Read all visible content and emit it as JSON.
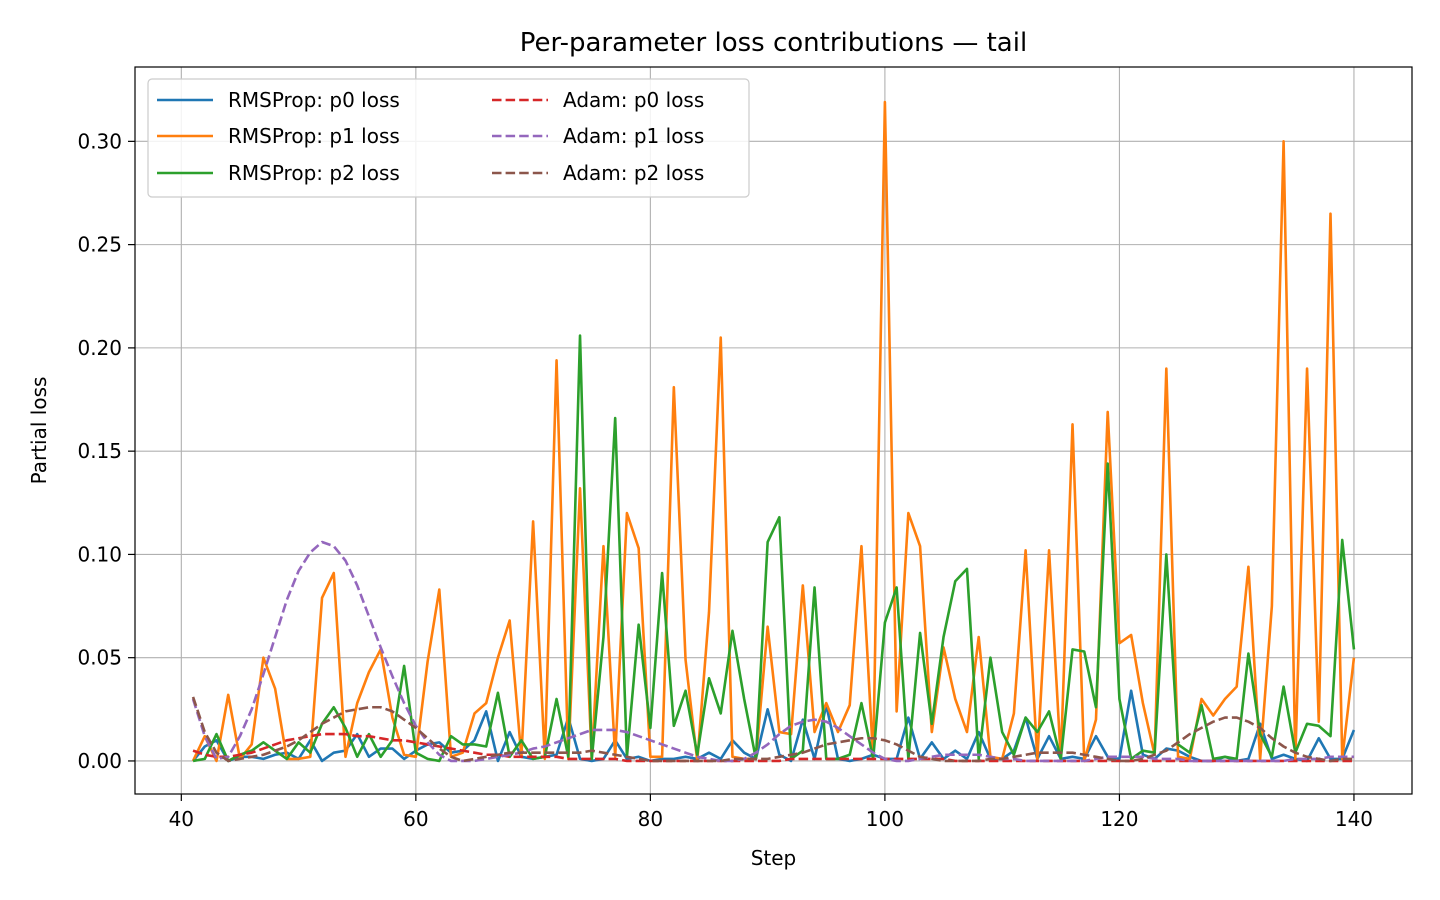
{
  "chart_data": {
    "type": "line",
    "title": "Per-parameter loss contributions — tail",
    "xlabel": "Step",
    "ylabel": "Partial loss",
    "xlim": [
      36.05,
      144.95
    ],
    "ylim": [
      -0.016,
      0.336
    ],
    "xticks": [
      40,
      60,
      80,
      100,
      120,
      140
    ],
    "xtick_labels": [
      "40",
      "60",
      "80",
      "100",
      "120",
      "140"
    ],
    "yticks": [
      0.0,
      0.05,
      0.1,
      0.15,
      0.2,
      0.25,
      0.3
    ],
    "ytick_labels": [
      "0.00",
      "0.05",
      "0.10",
      "0.15",
      "0.20",
      "0.25",
      "0.30"
    ],
    "grid": true,
    "legend_position": "top-left",
    "x_start": 41,
    "x_end": 140,
    "series": [
      {
        "name": "RMSProp: p0 loss",
        "color": "#1f77b4",
        "style": "solid",
        "values": [
          0.0,
          0.007,
          0.01,
          0.0,
          0.002,
          0.002,
          0.001,
          0.003,
          0.004,
          0.001,
          0.01,
          0.0,
          0.004,
          0.005,
          0.013,
          0.002,
          0.006,
          0.006,
          0.001,
          0.005,
          0.008,
          0.009,
          0.004,
          0.005,
          0.01,
          0.024,
          0.0,
          0.014,
          0.002,
          0.001,
          0.002,
          0.003,
          0.021,
          0.001,
          0.0,
          0.001,
          0.01,
          0.001,
          0.002,
          0.0,
          0.001,
          0.001,
          0.002,
          0.001,
          0.004,
          0.001,
          0.01,
          0.004,
          0.001,
          0.025,
          0.003,
          0.0,
          0.02,
          0.001,
          0.027,
          0.001,
          0.0,
          0.001,
          0.003,
          0.001,
          0.001,
          0.021,
          0.001,
          0.009,
          0.001,
          0.005,
          0.001,
          0.014,
          0.001,
          0.001,
          0.005,
          0.021,
          0.001,
          0.012,
          0.001,
          0.002,
          0.001,
          0.012,
          0.002,
          0.001,
          0.034,
          0.003,
          0.001,
          0.006,
          0.005,
          0.002,
          0.0,
          0.0,
          0.002,
          0.0,
          0.001,
          0.018,
          0.001,
          0.003,
          0.001,
          0.0,
          0.011,
          0.001,
          0.001,
          0.015
        ]
      },
      {
        "name": "RMSProp: p1 loss",
        "color": "#ff7f0e",
        "style": "solid",
        "values": [
          0.0,
          0.012,
          0.0,
          0.032,
          0.001,
          0.008,
          0.05,
          0.035,
          0.001,
          0.001,
          0.002,
          0.079,
          0.091,
          0.002,
          0.028,
          0.043,
          0.054,
          0.021,
          0.003,
          0.002,
          0.048,
          0.083,
          0.002,
          0.004,
          0.023,
          0.028,
          0.05,
          0.068,
          0.002,
          0.116,
          0.001,
          0.194,
          0.001,
          0.132,
          0.001,
          0.104,
          0.002,
          0.12,
          0.103,
          0.002,
          0.002,
          0.181,
          0.049,
          0.0,
          0.072,
          0.205,
          0.002,
          0.001,
          0.001,
          0.065,
          0.014,
          0.013,
          0.085,
          0.014,
          0.028,
          0.014,
          0.027,
          0.104,
          0.001,
          0.319,
          0.024,
          0.12,
          0.104,
          0.014,
          0.055,
          0.03,
          0.014,
          0.06,
          0.002,
          0.001,
          0.023,
          0.102,
          0.001,
          0.102,
          0.001,
          0.163,
          0.0,
          0.02,
          0.169,
          0.057,
          0.061,
          0.028,
          0.003,
          0.19,
          0.002,
          0.001,
          0.03,
          0.022,
          0.03,
          0.036,
          0.094,
          0.001,
          0.075,
          0.3,
          0.001,
          0.19,
          0.019,
          0.265,
          0.001,
          0.05
        ]
      },
      {
        "name": "RMSProp: p2 loss",
        "color": "#2ca02c",
        "style": "solid",
        "values": [
          0.0,
          0.001,
          0.013,
          0.0,
          0.003,
          0.005,
          0.009,
          0.005,
          0.001,
          0.009,
          0.004,
          0.018,
          0.026,
          0.016,
          0.002,
          0.013,
          0.002,
          0.01,
          0.046,
          0.004,
          0.001,
          0.0,
          0.012,
          0.008,
          0.008,
          0.007,
          0.033,
          0.002,
          0.01,
          0.001,
          0.002,
          0.03,
          0.002,
          0.206,
          0.001,
          0.06,
          0.166,
          0.002,
          0.066,
          0.016,
          0.091,
          0.017,
          0.034,
          0.003,
          0.04,
          0.023,
          0.063,
          0.03,
          0.001,
          0.106,
          0.118,
          0.001,
          0.005,
          0.084,
          0.001,
          0.001,
          0.003,
          0.028,
          0.001,
          0.067,
          0.084,
          0.001,
          0.062,
          0.018,
          0.06,
          0.087,
          0.093,
          0.001,
          0.05,
          0.014,
          0.003,
          0.021,
          0.014,
          0.024,
          0.001,
          0.054,
          0.053,
          0.026,
          0.144,
          0.03,
          0.001,
          0.005,
          0.004,
          0.1,
          0.008,
          0.004,
          0.027,
          0.001,
          0.002,
          0.001,
          0.052,
          0.013,
          0.002,
          0.036,
          0.004,
          0.018,
          0.017,
          0.012,
          0.107,
          0.054
        ]
      },
      {
        "name": "Adam: p0 loss",
        "color": "#d62728",
        "style": "dashed",
        "values": [
          0.005,
          0.003,
          0.002,
          0.002,
          0.003,
          0.004,
          0.006,
          0.008,
          0.01,
          0.011,
          0.012,
          0.013,
          0.013,
          0.013,
          0.012,
          0.012,
          0.011,
          0.01,
          0.01,
          0.009,
          0.008,
          0.007,
          0.006,
          0.005,
          0.004,
          0.003,
          0.003,
          0.002,
          0.002,
          0.002,
          0.002,
          0.002,
          0.001,
          0.001,
          0.001,
          0.001,
          0.001,
          0.0,
          0.0,
          0.0,
          0.0,
          0.0,
          0.0,
          0.0,
          0.0,
          0.0,
          0.0,
          0.0,
          0.0,
          0.0,
          0.0,
          0.001,
          0.001,
          0.001,
          0.001,
          0.001,
          0.001,
          0.001,
          0.001,
          0.001,
          0.001,
          0.001,
          0.001,
          0.001,
          0.001,
          0.0,
          0.0,
          0.0,
          0.0,
          0.0,
          0.0,
          0.0,
          0.0,
          0.0,
          0.0,
          0.0,
          0.0,
          0.0,
          0.0,
          0.0,
          0.0,
          0.0,
          0.0,
          0.0,
          0.0,
          0.0,
          0.0,
          0.0,
          0.0,
          0.0,
          0.0,
          0.0,
          0.0,
          0.0,
          0.0,
          0.0,
          0.0,
          0.0,
          0.0,
          0.0
        ]
      },
      {
        "name": "Adam: p1 loss",
        "color": "#9467bd",
        "style": "dashed",
        "values": [
          0.03,
          0.012,
          0.001,
          0.002,
          0.012,
          0.025,
          0.042,
          0.06,
          0.078,
          0.092,
          0.101,
          0.106,
          0.104,
          0.097,
          0.085,
          0.07,
          0.055,
          0.041,
          0.028,
          0.017,
          0.009,
          0.003,
          0.0,
          0.0,
          0.0,
          0.001,
          0.002,
          0.003,
          0.004,
          0.006,
          0.007,
          0.009,
          0.011,
          0.013,
          0.015,
          0.015,
          0.015,
          0.014,
          0.012,
          0.01,
          0.008,
          0.006,
          0.004,
          0.002,
          0.001,
          0.0,
          0.0,
          0.001,
          0.004,
          0.008,
          0.013,
          0.017,
          0.019,
          0.02,
          0.019,
          0.016,
          0.012,
          0.008,
          0.004,
          0.001,
          0.0,
          0.0,
          0.001,
          0.002,
          0.003,
          0.003,
          0.003,
          0.003,
          0.002,
          0.001,
          0.001,
          0.0,
          0.0,
          0.0,
          0.0,
          0.0,
          0.0,
          0.001,
          0.002,
          0.002,
          0.002,
          0.002,
          0.001,
          0.001,
          0.001,
          0.0,
          0.0,
          0.0,
          0.0,
          0.0,
          0.0,
          0.0,
          0.0,
          0.0,
          0.001,
          0.001,
          0.001,
          0.002,
          0.002,
          0.002
        ]
      },
      {
        "name": "Adam: p2 loss",
        "color": "#8c564b",
        "style": "dashed",
        "values": [
          0.031,
          0.014,
          0.004,
          0.0,
          0.001,
          0.002,
          0.003,
          0.005,
          0.007,
          0.01,
          0.014,
          0.018,
          0.021,
          0.024,
          0.025,
          0.026,
          0.026,
          0.024,
          0.02,
          0.016,
          0.011,
          0.006,
          0.002,
          0.0,
          0.001,
          0.002,
          0.003,
          0.004,
          0.004,
          0.004,
          0.004,
          0.004,
          0.004,
          0.004,
          0.005,
          0.004,
          0.003,
          0.002,
          0.001,
          0.0,
          0.0,
          0.0,
          0.0,
          0.0,
          0.0,
          0.0,
          0.001,
          0.001,
          0.001,
          0.001,
          0.002,
          0.003,
          0.004,
          0.006,
          0.008,
          0.009,
          0.01,
          0.011,
          0.011,
          0.01,
          0.008,
          0.005,
          0.002,
          0.001,
          0.0,
          0.0,
          0.0,
          0.0,
          0.001,
          0.001,
          0.002,
          0.003,
          0.004,
          0.004,
          0.004,
          0.004,
          0.003,
          0.002,
          0.001,
          0.0,
          0.0,
          0.001,
          0.003,
          0.005,
          0.009,
          0.013,
          0.016,
          0.019,
          0.021,
          0.021,
          0.019,
          0.016,
          0.011,
          0.007,
          0.004,
          0.002,
          0.001,
          0.0,
          0.001,
          0.001
        ]
      }
    ],
    "legend": {
      "columns": [
        [
          "RMSProp: p0 loss",
          "RMSProp: p1 loss",
          "RMSProp: p2 loss"
        ],
        [
          "Adam: p0 loss",
          "Adam: p1 loss",
          "Adam: p2 loss"
        ]
      ]
    }
  }
}
